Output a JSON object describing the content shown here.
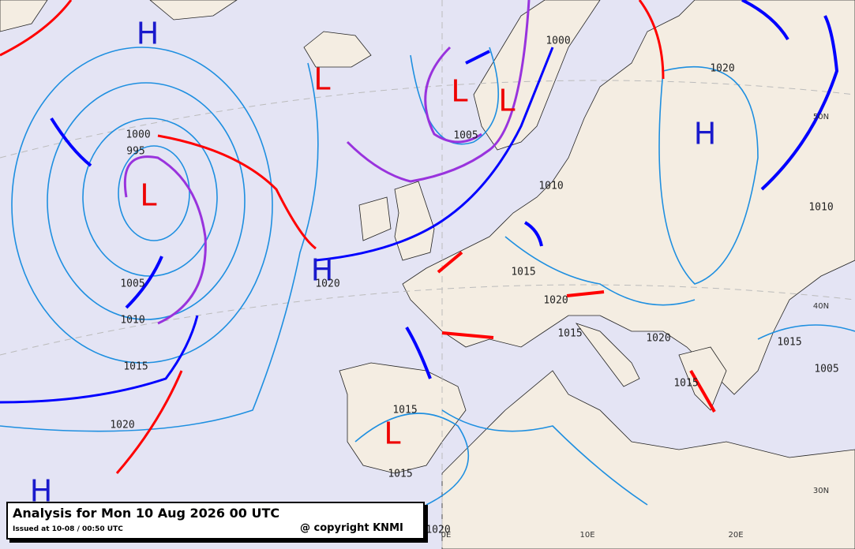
{
  "title_box": {
    "title": "Analysis for Mon 10 Aug 2026 00 UTC",
    "issued": "Issued at 10-08 / 00:50 UTC",
    "copyright": "@ copyright KNMI"
  },
  "pressure_centers": [
    "H",
    "L",
    "L",
    "L",
    "H",
    "L",
    "H",
    "L",
    "H"
  ],
  "isobar_labels": [
    "1000",
    "995",
    "1005",
    "1010",
    "1015",
    "1020",
    "1020",
    "1000",
    "1005",
    "1010",
    "1015",
    "1020",
    "1015",
    "1020",
    "1020",
    "1010",
    "1015",
    "1005",
    "1015",
    "1015",
    "1015",
    "1020"
  ],
  "graticule_labels": [
    "50N",
    "40N",
    "30N",
    "10E",
    "20E",
    "0E"
  ]
}
